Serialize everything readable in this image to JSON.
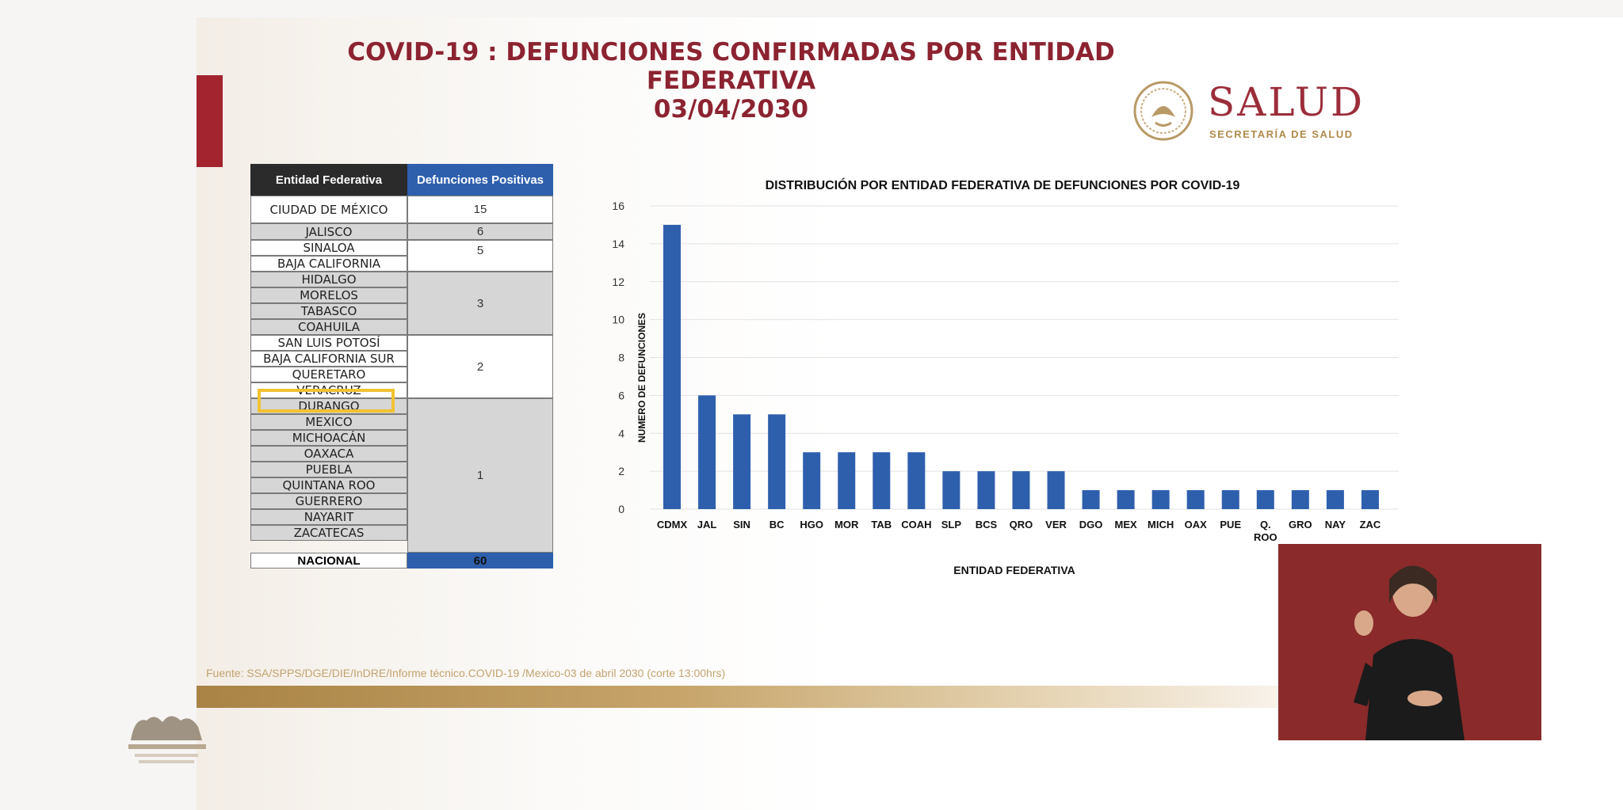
{
  "title": {
    "line1": "COVID-19 : DEFUNCIONES CONFIRMADAS POR ENTIDAD FEDERATIVA",
    "line2": "03/04/2030"
  },
  "logo": {
    "name": "SALUD",
    "subtitle": "SECRETARÍA DE SALUD"
  },
  "table": {
    "headers": [
      "Entidad Federativa",
      "Defunciones Positivas"
    ],
    "rows": [
      "CIUDAD DE MÉXICO",
      "JALISCO",
      "SINALOA",
      "BAJA CALIFORNIA",
      "HIDALGO",
      "MORELOS",
      "TABASCO",
      "COAHUILA",
      "SAN LUIS POTOSÍ",
      "BAJA CALIFORNIA SUR",
      "QUERETARO",
      "VERACRUZ",
      "DURANGO",
      "MEXICO",
      "MICHOACÁN",
      "OAXACA",
      "PUEBLA",
      "QUINTANA ROO",
      "GUERRERO",
      "NAYARIT",
      "ZACATECAS"
    ],
    "group_values": [
      "15",
      "6",
      "5",
      "3",
      "2",
      "1"
    ],
    "total_label": "NACIONAL",
    "total_value": "60"
  },
  "chart_data": {
    "type": "bar",
    "title": "DISTRIBUCIÓN POR ENTIDAD FEDERATIVA DE DEFUNCIONES POR COVID-19",
    "xlabel": "ENTIDAD FEDERATIVA",
    "ylabel": "NUMERO DE DEFUNCIONES",
    "categories": [
      "CDMX",
      "JAL",
      "SIN",
      "BC",
      "HGO",
      "MOR",
      "TAB",
      "COAH",
      "SLP",
      "BCS",
      "QRO",
      "VER",
      "DGO",
      "MEX",
      "MICH",
      "OAX",
      "PUE",
      "Q. ROO",
      "GRO",
      "NAY",
      "ZAC"
    ],
    "values": [
      15,
      6,
      5,
      5,
      3,
      3,
      3,
      3,
      2,
      2,
      2,
      2,
      1,
      1,
      1,
      1,
      1,
      1,
      1,
      1,
      1
    ],
    "ylim": [
      0,
      16
    ],
    "yticks": [
      0,
      2,
      4,
      6,
      8,
      10,
      12,
      14,
      16
    ],
    "grid": true,
    "bar_color": "#2e5fad"
  },
  "source": "Fuente: SSA/SPPS/DGE/DIE/InDRE/Informe técnico.COVID-19 /Mexico-03 de abril 2030 (corte 13:00hrs)",
  "colors": {
    "accent_red": "#a3232f",
    "title": "#8c2331",
    "table_blue": "#2e5fad",
    "highlight": "#f2c230"
  }
}
